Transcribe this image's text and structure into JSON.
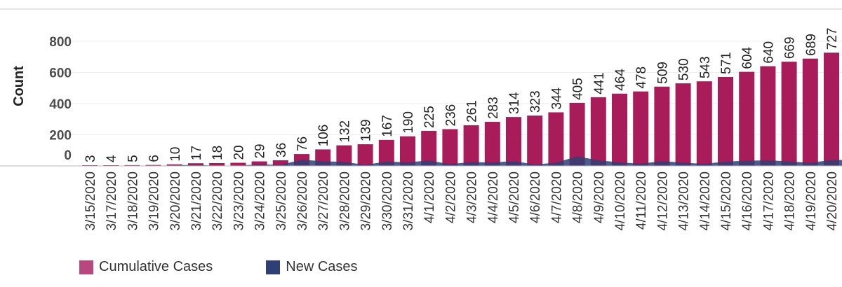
{
  "chart_data": {
    "type": "bar",
    "ylabel": "Count",
    "yticks": [
      "0",
      "200",
      "400",
      "600",
      "800"
    ],
    "ylim": [
      0,
      950
    ],
    "grid": true,
    "legend_position": "bottom-left",
    "categories": [
      "3/15/2020",
      "3/17/2020",
      "3/18/2020",
      "3/19/2020",
      "3/20/2020",
      "3/21/2020",
      "3/22/2020",
      "3/23/2020",
      "3/24/2020",
      "3/25/2020",
      "3/26/2020",
      "3/27/2020",
      "3/28/2020",
      "3/29/2020",
      "3/30/2020",
      "3/31/2020",
      "4/1/2020",
      "4/2/2020",
      "4/3/2020",
      "4/4/2020",
      "4/5/2020",
      "4/6/2020",
      "4/7/2020",
      "4/8/2020",
      "4/9/2020",
      "4/10/2020",
      "4/11/2020",
      "4/12/2020",
      "4/13/2020",
      "4/14/2020",
      "4/15/2020",
      "4/16/2020",
      "4/17/2020",
      "4/18/2020",
      "4/19/2020",
      "4/20/2020"
    ],
    "series": [
      {
        "name": "Cumulative Cases",
        "type": "bar",
        "color": "#a81c5a",
        "values": [
          3,
          4,
          5,
          6,
          10,
          17,
          18,
          20,
          29,
          36,
          76,
          106,
          132,
          139,
          167,
          190,
          225,
          236,
          261,
          283,
          314,
          323,
          344,
          405,
          441,
          464,
          478,
          509,
          530,
          543,
          571,
          604,
          640,
          669,
          689,
          727
        ]
      },
      {
        "name": "New Cases",
        "type": "area",
        "color": "#2e3f75",
        "values": [
          1,
          1,
          1,
          1,
          4,
          7,
          1,
          2,
          9,
          7,
          40,
          30,
          26,
          7,
          28,
          23,
          35,
          11,
          25,
          22,
          31,
          9,
          21,
          61,
          36,
          23,
          14,
          31,
          21,
          13,
          28,
          33,
          36,
          29,
          20,
          38
        ]
      }
    ]
  },
  "legend": {
    "cumulative": "Cumulative Cases",
    "new": "New Cases",
    "cumulative_color": "#b7477f",
    "new_color": "#2e3f75"
  }
}
